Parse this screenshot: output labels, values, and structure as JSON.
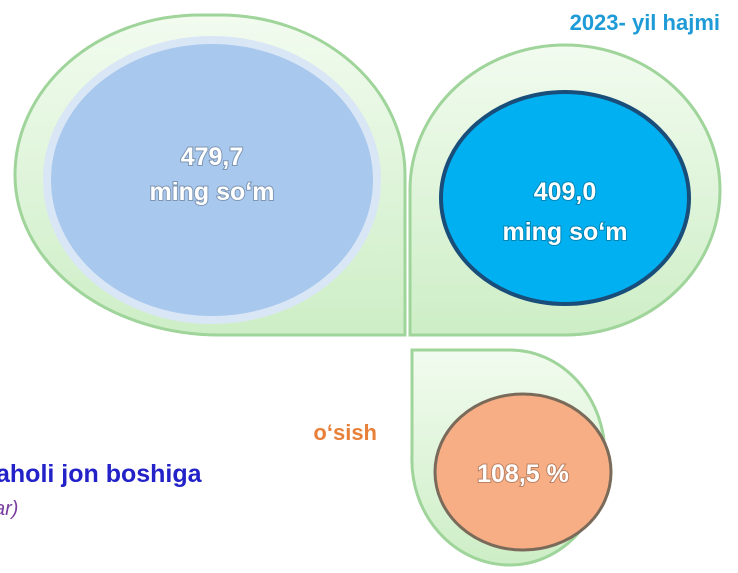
{
  "header": {
    "title": "2023- yil hajmi"
  },
  "bubbles": [
    {
      "value": "479,7",
      "unit": "ming so‘m"
    },
    {
      "value": "409,0",
      "unit": "ming so‘m"
    },
    {
      "value": "108,5 %"
    }
  ],
  "labels": {
    "growth": "o‘sish",
    "per_capita": "aholi jon boshiga",
    "note": "ar)"
  }
}
